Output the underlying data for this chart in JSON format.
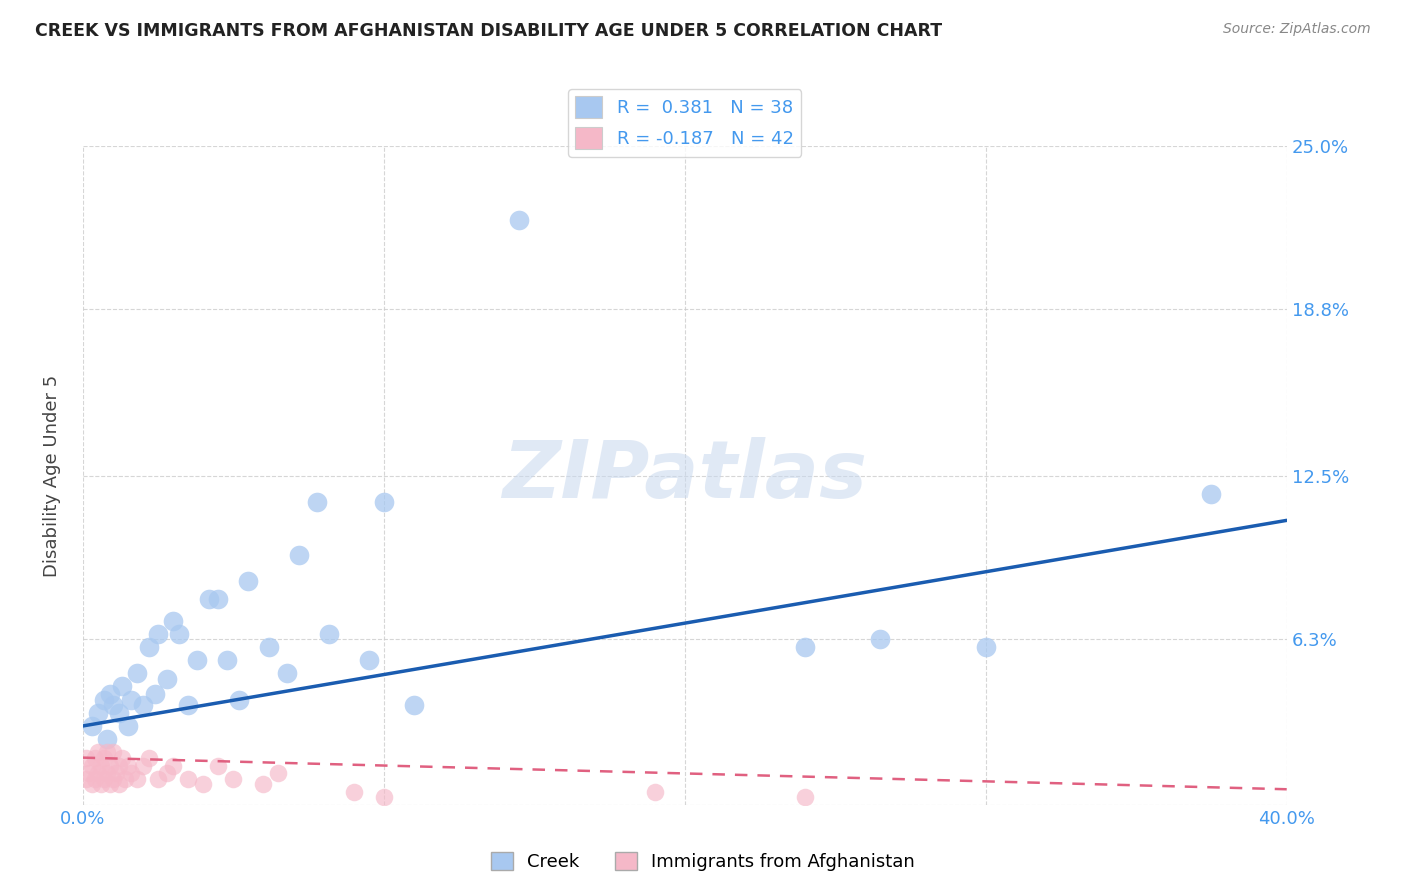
{
  "title": "CREEK VS IMMIGRANTS FROM AFGHANISTAN DISABILITY AGE UNDER 5 CORRELATION CHART",
  "source": "Source: ZipAtlas.com",
  "ylabel": "Disability Age Under 5",
  "xlim": [
    0.0,
    0.4
  ],
  "ylim": [
    0.0,
    0.25
  ],
  "xtick_vals": [
    0.0,
    0.1,
    0.2,
    0.3,
    0.4
  ],
  "xtick_labels": [
    "0.0%",
    "",
    "",
    "",
    "40.0%"
  ],
  "ytick_positions": [
    0.0,
    0.063,
    0.125,
    0.188,
    0.25
  ],
  "ytick_labels": [
    "",
    "6.3%",
    "12.5%",
    "18.8%",
    "25.0%"
  ],
  "creek_R": 0.381,
  "creek_N": 38,
  "afghan_R": -0.187,
  "afghan_N": 42,
  "creek_color": "#a8c8f0",
  "afghan_color": "#f5b8c8",
  "creek_line_color": "#1a5cb0",
  "afghan_line_color": "#e06080",
  "watermark": "ZIPatlas",
  "creek_points_x": [
    0.003,
    0.005,
    0.007,
    0.008,
    0.009,
    0.01,
    0.012,
    0.013,
    0.015,
    0.016,
    0.018,
    0.02,
    0.022,
    0.024,
    0.025,
    0.028,
    0.03,
    0.032,
    0.035,
    0.038,
    0.042,
    0.045,
    0.048,
    0.052,
    0.055,
    0.062,
    0.068,
    0.072,
    0.078,
    0.082,
    0.095,
    0.1,
    0.11,
    0.145,
    0.24,
    0.265,
    0.3,
    0.375
  ],
  "creek_points_y": [
    0.03,
    0.035,
    0.04,
    0.025,
    0.042,
    0.038,
    0.035,
    0.045,
    0.03,
    0.04,
    0.05,
    0.038,
    0.06,
    0.042,
    0.065,
    0.048,
    0.07,
    0.065,
    0.038,
    0.055,
    0.078,
    0.078,
    0.055,
    0.04,
    0.085,
    0.06,
    0.05,
    0.095,
    0.115,
    0.065,
    0.055,
    0.115,
    0.038,
    0.222,
    0.06,
    0.063,
    0.06,
    0.118
  ],
  "afghan_points_x": [
    0.001,
    0.001,
    0.002,
    0.003,
    0.003,
    0.004,
    0.004,
    0.005,
    0.005,
    0.006,
    0.006,
    0.007,
    0.007,
    0.008,
    0.008,
    0.009,
    0.009,
    0.01,
    0.01,
    0.011,
    0.012,
    0.012,
    0.013,
    0.014,
    0.015,
    0.016,
    0.018,
    0.02,
    0.022,
    0.025,
    0.028,
    0.03,
    0.035,
    0.04,
    0.045,
    0.05,
    0.06,
    0.065,
    0.09,
    0.1,
    0.19,
    0.24
  ],
  "afghan_points_y": [
    0.01,
    0.018,
    0.012,
    0.008,
    0.015,
    0.01,
    0.018,
    0.012,
    0.02,
    0.008,
    0.015,
    0.01,
    0.018,
    0.012,
    0.02,
    0.008,
    0.015,
    0.01,
    0.02,
    0.012,
    0.015,
    0.008,
    0.018,
    0.01,
    0.015,
    0.012,
    0.01,
    0.015,
    0.018,
    0.01,
    0.012,
    0.015,
    0.01,
    0.008,
    0.015,
    0.01,
    0.008,
    0.012,
    0.005,
    0.003,
    0.005,
    0.003
  ],
  "creek_line_x0": 0.0,
  "creek_line_y0": 0.03,
  "creek_line_x1": 0.4,
  "creek_line_y1": 0.108,
  "afghan_line_x0": 0.0,
  "afghan_line_y0": 0.018,
  "afghan_line_x1": 0.4,
  "afghan_line_y1": 0.006
}
